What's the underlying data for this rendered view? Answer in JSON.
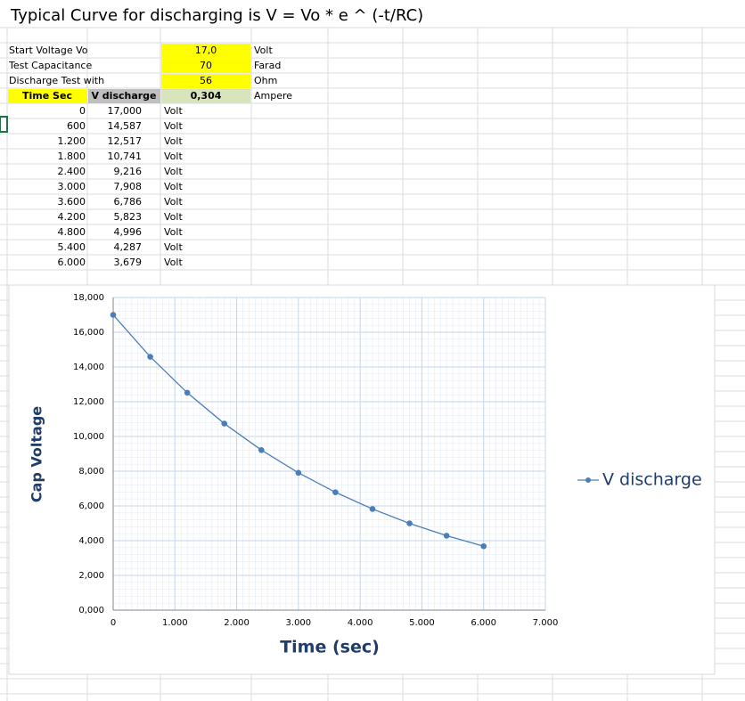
{
  "sheet": {
    "title": "Typical Curve for discharging is V = Vo * e ^ (-t/RC)",
    "params": [
      {
        "label": "Start Voltage Vo",
        "value": "17,0",
        "unit": "Volt"
      },
      {
        "label": "Test Capacitance",
        "value": "70",
        "unit": "Farad"
      },
      {
        "label": "Discharge Test with",
        "value": "56",
        "unit": "Ohm"
      }
    ],
    "headers": [
      "Time Sec",
      "V discharge"
    ],
    "current": {
      "value": "0,304",
      "unit": "Ampere"
    },
    "rows": [
      [
        "0",
        "17,000",
        "Volt"
      ],
      [
        "600",
        "14,587",
        "Volt"
      ],
      [
        "1.200",
        "12,517",
        "Volt"
      ],
      [
        "1.800",
        "10,741",
        "Volt"
      ],
      [
        "2.400",
        "9,216",
        "Volt"
      ],
      [
        "3.000",
        "7,908",
        "Volt"
      ],
      [
        "3.600",
        "6,786",
        "Volt"
      ],
      [
        "4.200",
        "5,823",
        "Volt"
      ],
      [
        "4.800",
        "4,996",
        "Volt"
      ],
      [
        "5.400",
        "4,287",
        "Volt"
      ],
      [
        "6.000",
        "3,679",
        "Volt"
      ]
    ]
  },
  "chart_data": {
    "type": "line",
    "x_label": "Time (sec)",
    "y_label": "Cap Voltage",
    "x": [
      0,
      600,
      1200,
      1800,
      2400,
      3000,
      3600,
      4200,
      4800,
      5400,
      6000
    ],
    "series": [
      {
        "name": "V discharge",
        "color": "#4a7ebb",
        "values": [
          17.0,
          14.587,
          12.517,
          10.741,
          9.216,
          7.908,
          6.786,
          5.823,
          4.996,
          4.287,
          3.679
        ]
      }
    ],
    "xlim": [
      0,
      7000
    ],
    "xticks": [
      0,
      {
        "value": 1000,
        "label": "1.000"
      },
      {
        "value": 2000,
        "label": "2.000"
      },
      {
        "value": 3000,
        "label": "3.000"
      },
      {
        "value": 4000,
        "label": "4.000"
      },
      {
        "value": 5000,
        "label": "5.000"
      },
      {
        "value": 6000,
        "label": "6.000"
      },
      {
        "value": 7000,
        "label": "7.000"
      }
    ],
    "ylim": [
      0,
      18
    ],
    "yticks": [
      {
        "value": 0,
        "label": "0,000"
      },
      {
        "value": 2,
        "label": "2,000"
      },
      {
        "value": 4,
        "label": "4,000"
      },
      {
        "value": 6,
        "label": "6,000"
      },
      {
        "value": 8,
        "label": "8,000"
      },
      {
        "value": 10,
        "label": "10,000"
      },
      {
        "value": 12,
        "label": "12,000"
      },
      {
        "value": 14,
        "label": "14,000"
      },
      {
        "value": 16,
        "label": "16,000"
      },
      {
        "value": 18,
        "label": "18,000"
      }
    ],
    "grid": true,
    "legend": "right"
  }
}
